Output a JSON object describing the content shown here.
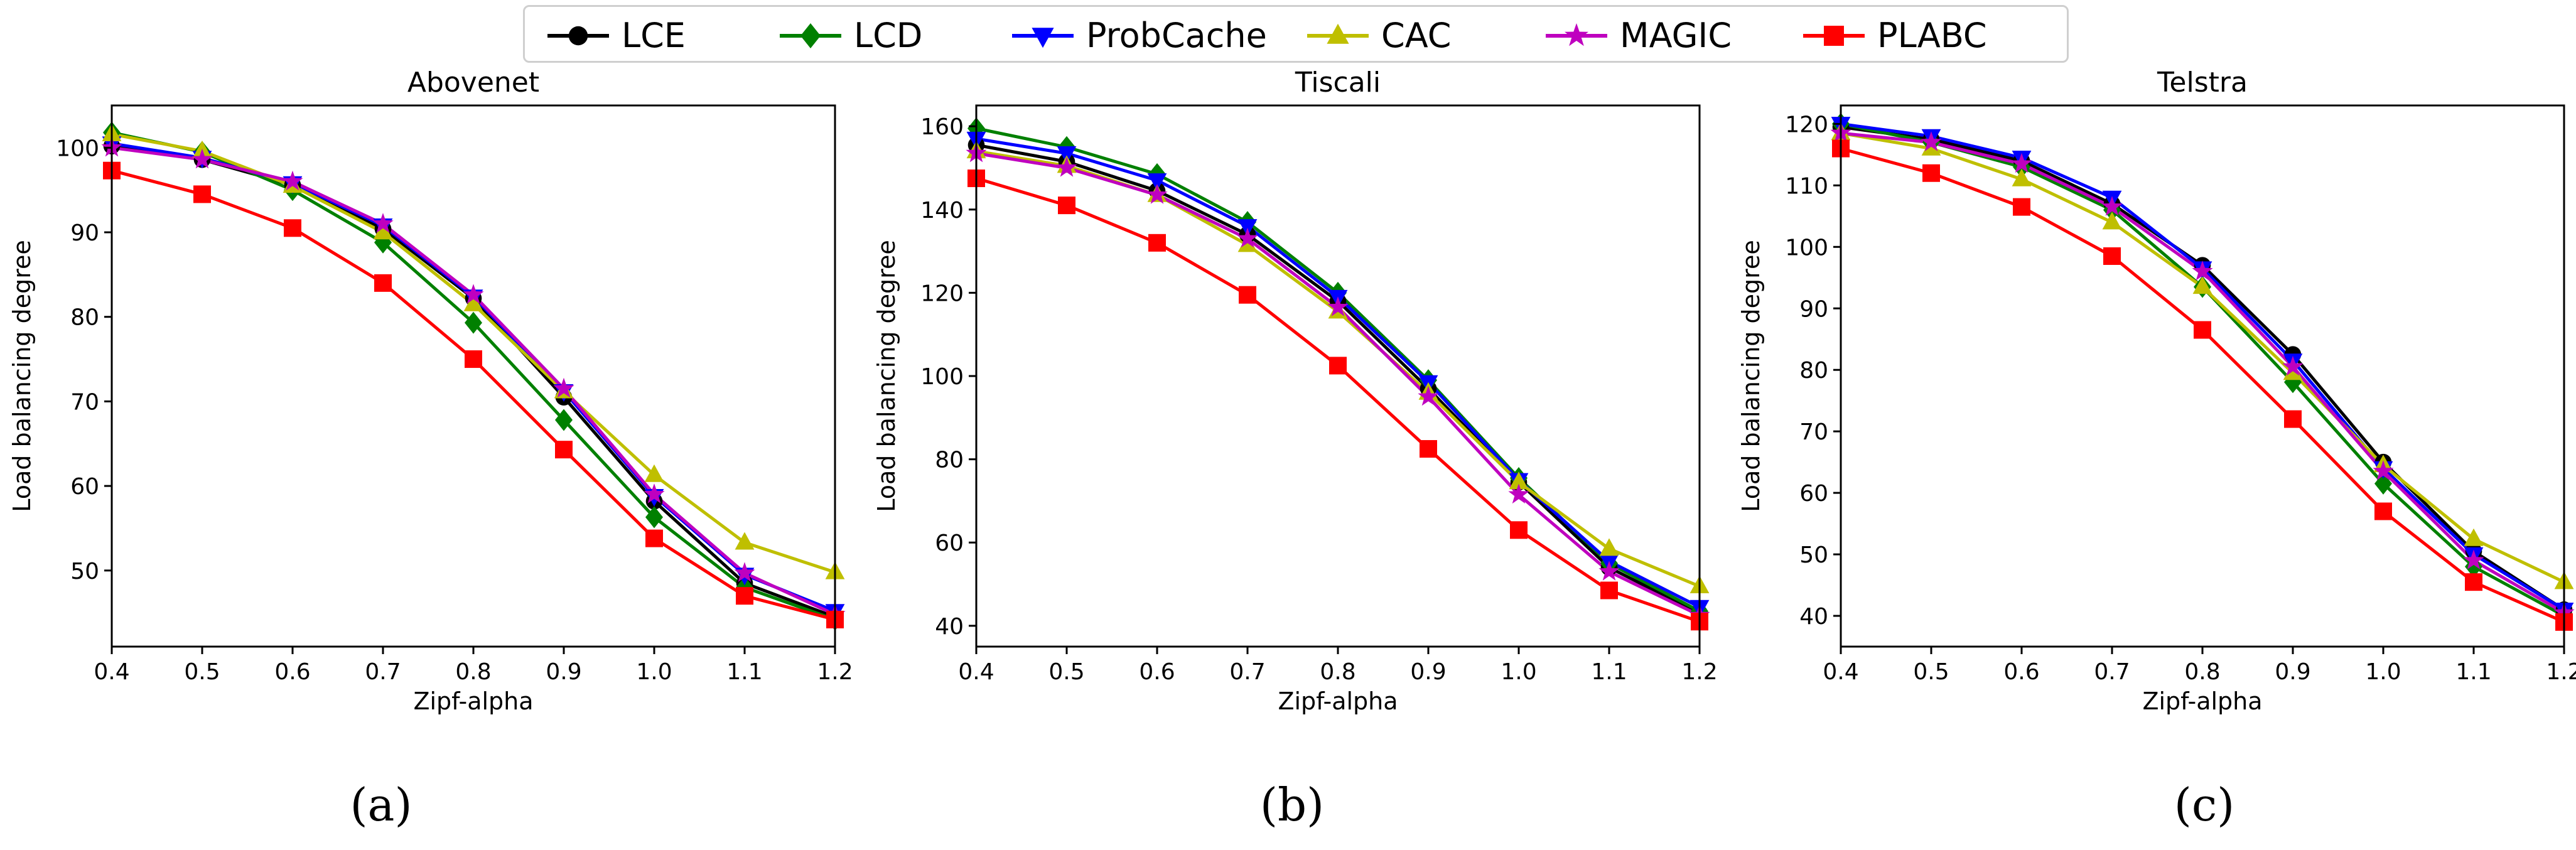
{
  "legend": [
    {
      "name": "LCE",
      "color": "#000000",
      "marker": "circle"
    },
    {
      "name": "LCD",
      "color": "#008000",
      "marker": "diamond"
    },
    {
      "name": "ProbCache",
      "color": "#0000ff",
      "marker": "triangle-down"
    },
    {
      "name": "CAC",
      "color": "#bfbf00",
      "marker": "triangle-up"
    },
    {
      "name": "MAGIC",
      "color": "#bf00bf",
      "marker": "star"
    },
    {
      "name": "PLABC",
      "color": "#ff0000",
      "marker": "square"
    }
  ],
  "captions": [
    "(a)",
    "(b)",
    "(c)"
  ],
  "chart_data": [
    {
      "type": "line",
      "title": "Abovenet",
      "xlabel": "Zipf-alpha",
      "ylabel": "Load balancing degree",
      "x": [
        0.4,
        0.5,
        0.6,
        0.7,
        0.8,
        0.9,
        1.0,
        1.1,
        1.2
      ],
      "xlim": [
        0.4,
        1.2
      ],
      "ylim": [
        41,
        105
      ],
      "xticks": [
        "0.4",
        "0.5",
        "0.6",
        "0.7",
        "0.8",
        "0.9",
        "1.0",
        "1.1",
        "1.2"
      ],
      "yticks": [
        50,
        60,
        70,
        80,
        90,
        100
      ],
      "grid": false,
      "series": [
        {
          "name": "LCE",
          "values": [
            100.2,
            98.6,
            95.6,
            90.4,
            82.2,
            70.5,
            58.2,
            48.5,
            44.5
          ]
        },
        {
          "name": "LCD",
          "values": [
            101.8,
            99.5,
            95.0,
            88.8,
            79.3,
            67.8,
            56.3,
            48.0,
            44.2
          ]
        },
        {
          "name": "ProbCache",
          "values": [
            100.5,
            98.8,
            95.8,
            90.8,
            82.4,
            71.2,
            58.8,
            49.5,
            45.2
          ]
        },
        {
          "name": "CAC",
          "values": [
            101.6,
            99.6,
            95.5,
            90.0,
            81.5,
            71.2,
            61.3,
            53.3,
            49.8
          ]
        },
        {
          "name": "MAGIC",
          "values": [
            100.0,
            98.6,
            96.0,
            91.0,
            82.6,
            71.5,
            59.0,
            49.7,
            44.8
          ]
        },
        {
          "name": "PLABC",
          "values": [
            97.3,
            94.5,
            90.5,
            84.0,
            75.0,
            64.3,
            53.8,
            47.0,
            44.2
          ]
        }
      ]
    },
    {
      "type": "line",
      "title": "Tiscali",
      "xlabel": "Zipf-alpha",
      "ylabel": "Load balancing degree",
      "x": [
        0.4,
        0.5,
        0.6,
        0.7,
        0.8,
        0.9,
        1.0,
        1.1,
        1.2
      ],
      "xlim": [
        0.4,
        1.2
      ],
      "ylim": [
        35,
        165
      ],
      "xticks": [
        "0.4",
        "0.5",
        "0.6",
        "0.7",
        "0.8",
        "0.9",
        "1.0",
        "1.1",
        "1.2"
      ],
      "yticks": [
        40,
        60,
        80,
        100,
        120,
        140,
        160
      ],
      "grid": false,
      "series": [
        {
          "name": "LCE",
          "values": [
            155.5,
            151.5,
            144.5,
            134.0,
            118.0,
            97.0,
            74.5,
            54.0,
            43.0
          ]
        },
        {
          "name": "LCD",
          "values": [
            159.5,
            155.0,
            148.5,
            137.0,
            120.0,
            99.0,
            75.5,
            55.0,
            43.5
          ]
        },
        {
          "name": "ProbCache",
          "values": [
            157.0,
            153.5,
            147.0,
            136.0,
            119.0,
            98.5,
            75.0,
            55.5,
            44.5
          ]
        },
        {
          "name": "CAC",
          "values": [
            154.0,
            150.5,
            143.5,
            131.5,
            115.5,
            96.0,
            74.5,
            58.5,
            49.5
          ]
        },
        {
          "name": "MAGIC",
          "values": [
            153.5,
            150.0,
            143.5,
            133.0,
            116.5,
            95.0,
            71.5,
            53.0,
            42.5
          ]
        },
        {
          "name": "PLABC",
          "values": [
            147.5,
            141.0,
            132.0,
            119.5,
            102.5,
            82.5,
            63.0,
            48.5,
            41.0
          ]
        }
      ]
    },
    {
      "type": "line",
      "title": "Telstra",
      "xlabel": "Zipf-alpha",
      "ylabel": "Load balancing degree",
      "x": [
        0.4,
        0.5,
        0.6,
        0.7,
        0.8,
        0.9,
        1.0,
        1.1,
        1.2
      ],
      "xlim": [
        0.4,
        1.2
      ],
      "ylim": [
        35,
        123
      ],
      "xticks": [
        "0.4",
        "0.5",
        "0.6",
        "0.7",
        "0.8",
        "0.9",
        "1.0",
        "1.1",
        "1.2"
      ],
      "yticks": [
        40,
        50,
        60,
        70,
        80,
        90,
        100,
        110,
        120
      ],
      "grid": false,
      "series": [
        {
          "name": "LCE",
          "values": [
            119.5,
            117.5,
            114.0,
            107.0,
            97.0,
            82.5,
            65.0,
            50.5,
            41.0
          ]
        },
        {
          "name": "LCD",
          "values": [
            120.0,
            117.0,
            113.0,
            106.0,
            93.5,
            78.0,
            61.5,
            48.0,
            40.0
          ]
        },
        {
          "name": "ProbCache",
          "values": [
            120.0,
            118.0,
            114.5,
            108.0,
            96.5,
            81.5,
            64.0,
            50.0,
            41.0
          ]
        },
        {
          "name": "CAC",
          "values": [
            118.5,
            116.0,
            111.0,
            104.0,
            93.5,
            79.5,
            64.5,
            52.5,
            45.5
          ]
        },
        {
          "name": "MAGIC",
          "values": [
            118.5,
            117.0,
            113.5,
            106.5,
            96.0,
            80.5,
            63.5,
            49.0,
            40.5
          ]
        },
        {
          "name": "PLABC",
          "values": [
            116.0,
            112.0,
            106.5,
            98.5,
            86.5,
            72.0,
            57.0,
            45.5,
            39.0
          ]
        }
      ]
    }
  ]
}
